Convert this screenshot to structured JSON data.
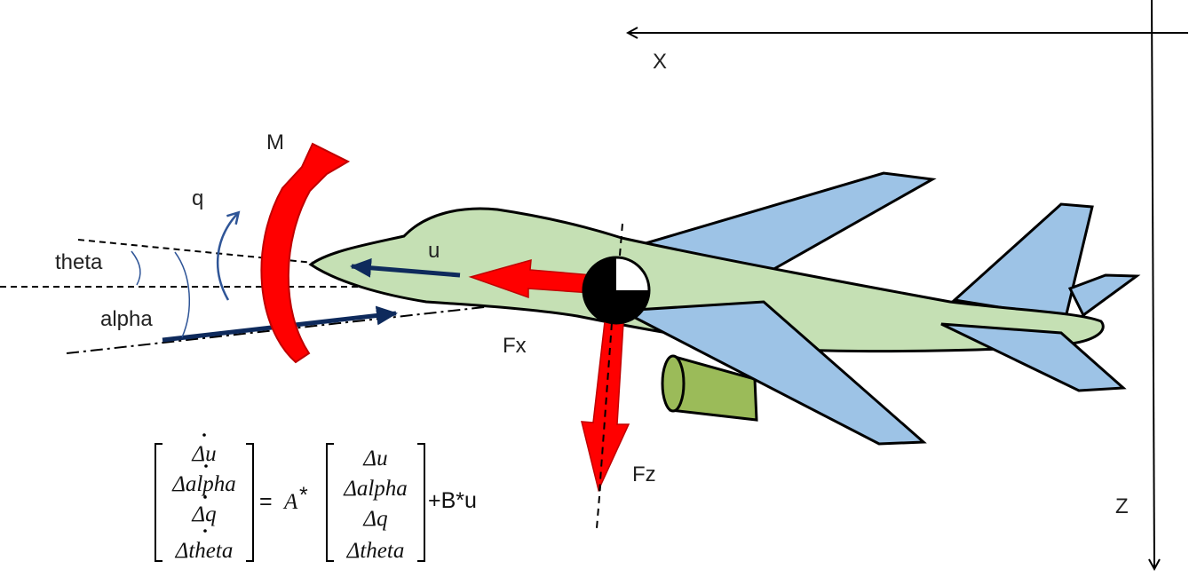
{
  "axes": {
    "x_label": "X",
    "z_label": "Z"
  },
  "labels": {
    "moment": "M",
    "pitch_rate": "q",
    "theta": "theta",
    "alpha": "alpha",
    "velocity": "u",
    "force_x": "Fx",
    "force_z": "Fz"
  },
  "equation": {
    "lhs": [
      "Δu",
      "Δalpha",
      "Δq",
      "Δtheta"
    ],
    "equals": "=",
    "matrix_a": "A",
    "star": "*",
    "rhs": [
      "Δu",
      "Δalpha",
      "Δq",
      "Δtheta"
    ],
    "tail": "+B*u"
  },
  "colors": {
    "fuselage": "#c5e0b4",
    "wing": "#9dc3e6",
    "engine": "#9bbb59",
    "force_arrow": "#ff0000",
    "velocity_arrow": "#0e2a5c",
    "angle_arc": "#2f5597"
  }
}
